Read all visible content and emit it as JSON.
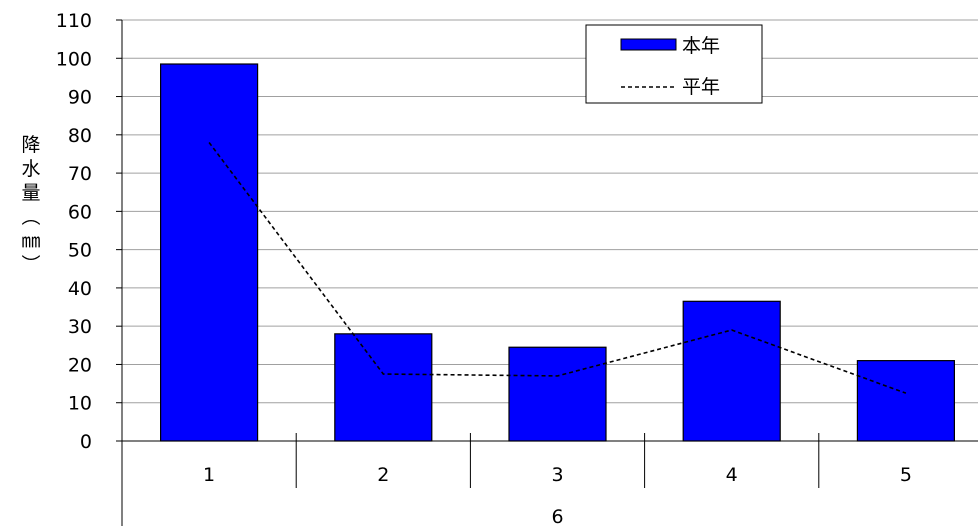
{
  "chart_data": {
    "type": "bar",
    "title": "",
    "categories": [
      "1",
      "2",
      "3",
      "4",
      "5"
    ],
    "group_label": "6",
    "series": [
      {
        "name": "本年",
        "kind": "bar",
        "values": [
          98.5,
          28.0,
          24.5,
          36.5,
          21.0
        ]
      },
      {
        "name": "平年",
        "kind": "line",
        "values": [
          78,
          17.5,
          17,
          29,
          12.5
        ]
      }
    ],
    "ylabel_chars": [
      "降",
      "水",
      "量",
      "︵",
      "㎜",
      "︶"
    ],
    "ylim": [
      0,
      110
    ],
    "yticks": [
      0,
      10,
      20,
      30,
      40,
      50,
      60,
      70,
      80,
      90,
      100,
      110
    ],
    "grid": true,
    "legend_position": "top-right",
    "colors": {
      "bar_fill": "#0000FF",
      "bar_stroke": "#000000",
      "line": "#000000",
      "grid": "#A0A0A0"
    }
  }
}
